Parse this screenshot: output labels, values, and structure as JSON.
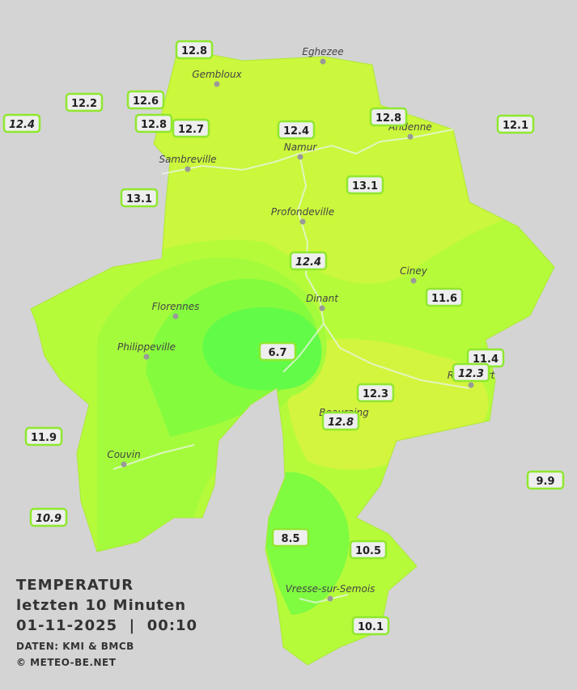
{
  "title": {
    "line1": "TEMPERATUR",
    "line2": "letzten 10 Minuten",
    "line3": "01-11-2025  |  00:10",
    "source": "DATEN: KMI & BMCB",
    "copyright": "© METEO-BE.NET"
  },
  "cities": [
    "Eghezee",
    "Gembloux",
    "Andenne",
    "Sambreville",
    "Namur",
    "Profondeville",
    "Ciney",
    "Dinant",
    "Florennes",
    "Philippeville",
    "Beauraing",
    "Rochefort",
    "Couvin",
    "Vresse-sur-Semois"
  ],
  "stations": [
    12.8,
    12.2,
    12.6,
    12.4,
    12.8,
    12.7,
    12.4,
    12.8,
    12.1,
    13.1,
    13.1,
    12.4,
    11.6,
    6.7,
    11.4,
    12.3,
    12.3,
    12.8,
    11.9,
    9.9,
    10.9,
    8.5,
    10.5,
    10.1
  ]
}
